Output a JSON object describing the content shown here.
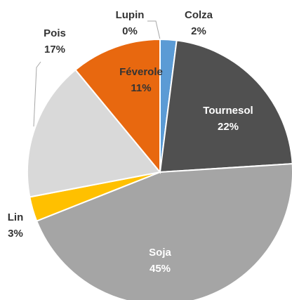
{
  "chart_data": {
    "type": "pie",
    "categories": [
      "Lupin",
      "Colza",
      "Tournesol",
      "Soja",
      "Lin",
      "Pois",
      "Féverole"
    ],
    "values": [
      0,
      2,
      22,
      45,
      3,
      17,
      11
    ],
    "value_labels": [
      "0%",
      "2%",
      "22%",
      "45%",
      "3%",
      "17%",
      "11%"
    ],
    "colors": [
      "#5b9bd5",
      "#5b9bd5",
      "#505050",
      "#a5a5a5",
      "#ffc000",
      "#d9d9d9",
      "#e8680f"
    ]
  }
}
